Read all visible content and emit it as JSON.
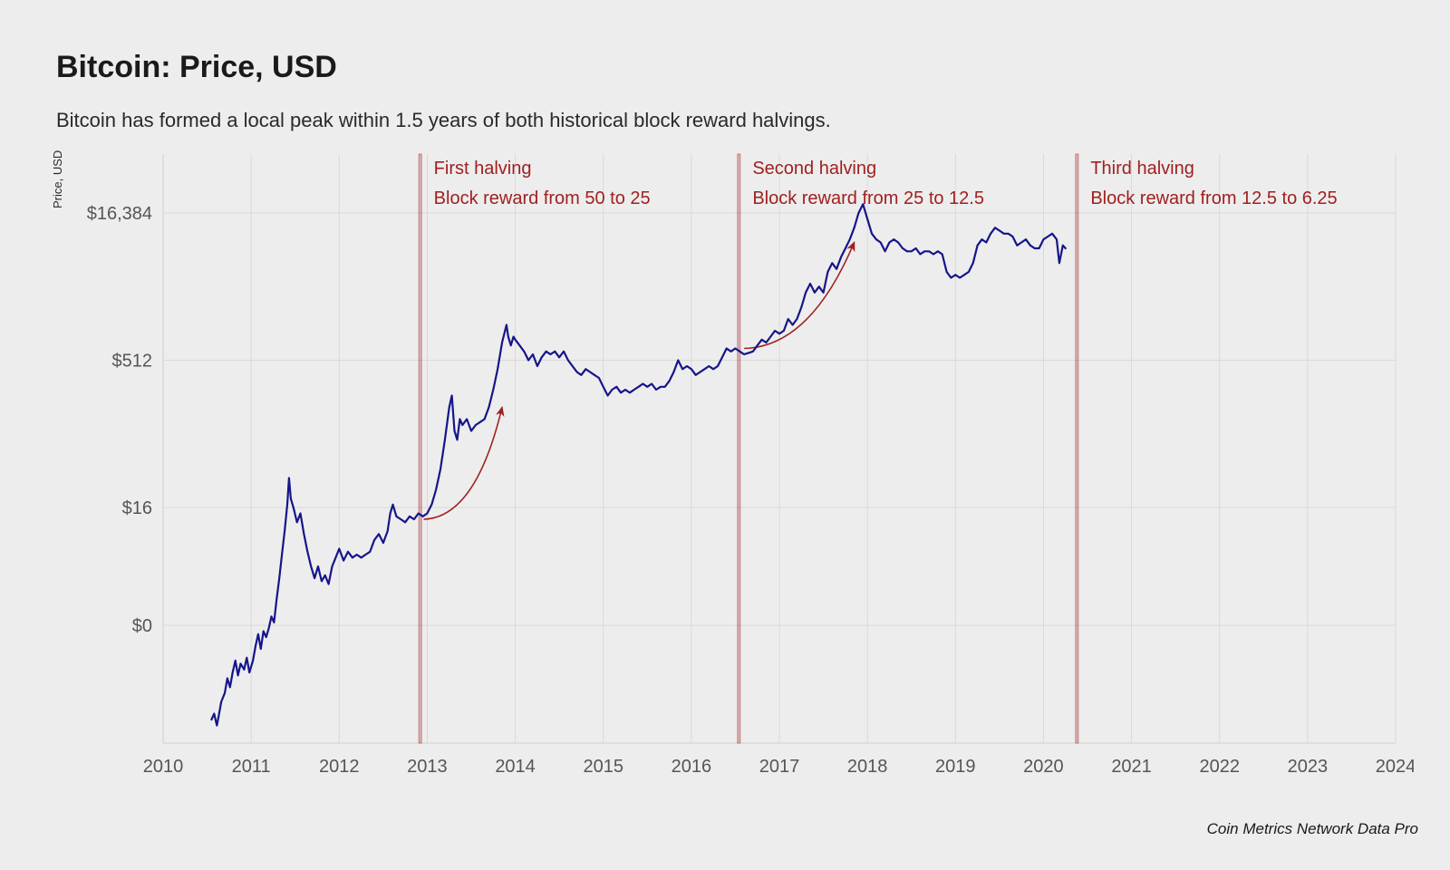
{
  "header": {
    "title": "Bitcoin: Price, USD",
    "subtitle": "Bitcoin has formed a local peak within 1.5 years of both historical block reward halvings."
  },
  "attribution": "Coin Metrics Network Data Pro",
  "chart": {
    "type": "line",
    "scale_y": "log2",
    "background_color": "#ededed",
    "grid_color": "#d9d9d9",
    "axis_line_color": "#888888",
    "axis_text_color": "#555555",
    "x_tick_fontsize": 20,
    "y_tick_fontsize": 20,
    "yaxis_title": "Price, USD",
    "yaxis_title_fontsize": 13,
    "annotation_color": "#a02020",
    "annotation_fontsize": 20,
    "line_color": "#15158a",
    "line_width": 2.2,
    "halving_line_color": "#b14a4a",
    "halving_fill_opacity": 0.35,
    "x_domain": [
      2010,
      2024
    ],
    "x_ticks": [
      2010,
      2011,
      2012,
      2013,
      2014,
      2015,
      2016,
      2017,
      2018,
      2019,
      2020,
      2021,
      2022,
      2023,
      2024
    ],
    "y_ticks_log2": [
      {
        "exp": 0,
        "label": "$0"
      },
      {
        "exp": 4,
        "label": "$16"
      },
      {
        "exp": 9,
        "label": "$512"
      },
      {
        "exp": 14,
        "label": "$16,384"
      }
    ],
    "y_domain_log2": [
      -4,
      16
    ],
    "halvings": [
      {
        "x": 2012.92,
        "lines": [
          "First halving",
          "Block reward from 50 to 25"
        ]
      },
      {
        "x": 2016.54,
        "lines": [
          "Second halving",
          "Block reward from 25 to 12.5"
        ]
      },
      {
        "x": 2020.38,
        "lines": [
          "Third halving",
          "Block reward from 12.5 to 6.25"
        ]
      }
    ],
    "arrows": [
      {
        "start": [
          2012.96,
          3.6
        ],
        "ctrl": [
          2013.55,
          3.65
        ],
        "end": [
          2013.85,
          7.4
        ]
      },
      {
        "start": [
          2016.6,
          9.4
        ],
        "ctrl": [
          2017.35,
          9.45
        ],
        "end": [
          2017.85,
          13.0
        ]
      }
    ],
    "series": [
      [
        2010.55,
        -3.2
      ],
      [
        2010.58,
        -3.0
      ],
      [
        2010.61,
        -3.4
      ],
      [
        2010.63,
        -3.1
      ],
      [
        2010.66,
        -2.6
      ],
      [
        2010.7,
        -2.3
      ],
      [
        2010.73,
        -1.8
      ],
      [
        2010.76,
        -2.1
      ],
      [
        2010.79,
        -1.6
      ],
      [
        2010.82,
        -1.2
      ],
      [
        2010.85,
        -1.7
      ],
      [
        2010.88,
        -1.3
      ],
      [
        2010.92,
        -1.5
      ],
      [
        2010.95,
        -1.1
      ],
      [
        2010.98,
        -1.6
      ],
      [
        2011.02,
        -1.2
      ],
      [
        2011.05,
        -0.7
      ],
      [
        2011.08,
        -0.3
      ],
      [
        2011.11,
        -0.8
      ],
      [
        2011.14,
        -0.2
      ],
      [
        2011.17,
        -0.4
      ],
      [
        2011.2,
        -0.1
      ],
      [
        2011.23,
        0.3
      ],
      [
        2011.26,
        0.1
      ],
      [
        2011.29,
        0.9
      ],
      [
        2011.32,
        1.6
      ],
      [
        2011.35,
        2.4
      ],
      [
        2011.38,
        3.2
      ],
      [
        2011.41,
        4.1
      ],
      [
        2011.43,
        5.0
      ],
      [
        2011.45,
        4.3
      ],
      [
        2011.48,
        4.0
      ],
      [
        2011.52,
        3.5
      ],
      [
        2011.56,
        3.8
      ],
      [
        2011.6,
        3.1
      ],
      [
        2011.64,
        2.5
      ],
      [
        2011.68,
        2.0
      ],
      [
        2011.72,
        1.6
      ],
      [
        2011.76,
        2.0
      ],
      [
        2011.8,
        1.5
      ],
      [
        2011.84,
        1.7
      ],
      [
        2011.88,
        1.4
      ],
      [
        2011.92,
        2.0
      ],
      [
        2011.96,
        2.3
      ],
      [
        2012.0,
        2.6
      ],
      [
        2012.05,
        2.2
      ],
      [
        2012.1,
        2.5
      ],
      [
        2012.15,
        2.3
      ],
      [
        2012.2,
        2.4
      ],
      [
        2012.25,
        2.3
      ],
      [
        2012.3,
        2.4
      ],
      [
        2012.35,
        2.5
      ],
      [
        2012.4,
        2.9
      ],
      [
        2012.45,
        3.1
      ],
      [
        2012.5,
        2.8
      ],
      [
        2012.55,
        3.2
      ],
      [
        2012.58,
        3.8
      ],
      [
        2012.61,
        4.1
      ],
      [
        2012.65,
        3.7
      ],
      [
        2012.7,
        3.6
      ],
      [
        2012.75,
        3.5
      ],
      [
        2012.8,
        3.7
      ],
      [
        2012.85,
        3.6
      ],
      [
        2012.9,
        3.8
      ],
      [
        2012.95,
        3.7
      ],
      [
        2013.0,
        3.8
      ],
      [
        2013.05,
        4.1
      ],
      [
        2013.1,
        4.6
      ],
      [
        2013.15,
        5.3
      ],
      [
        2013.2,
        6.3
      ],
      [
        2013.25,
        7.4
      ],
      [
        2013.28,
        7.8
      ],
      [
        2013.31,
        6.6
      ],
      [
        2013.34,
        6.3
      ],
      [
        2013.37,
        7.0
      ],
      [
        2013.4,
        6.8
      ],
      [
        2013.45,
        7.0
      ],
      [
        2013.5,
        6.6
      ],
      [
        2013.55,
        6.8
      ],
      [
        2013.6,
        6.9
      ],
      [
        2013.65,
        7.0
      ],
      [
        2013.7,
        7.4
      ],
      [
        2013.75,
        8.0
      ],
      [
        2013.8,
        8.7
      ],
      [
        2013.85,
        9.6
      ],
      [
        2013.9,
        10.2
      ],
      [
        2013.92,
        9.8
      ],
      [
        2013.95,
        9.5
      ],
      [
        2013.98,
        9.8
      ],
      [
        2014.0,
        9.7
      ],
      [
        2014.05,
        9.5
      ],
      [
        2014.1,
        9.3
      ],
      [
        2014.15,
        9.0
      ],
      [
        2014.2,
        9.2
      ],
      [
        2014.25,
        8.8
      ],
      [
        2014.3,
        9.1
      ],
      [
        2014.35,
        9.3
      ],
      [
        2014.4,
        9.2
      ],
      [
        2014.45,
        9.3
      ],
      [
        2014.5,
        9.1
      ],
      [
        2014.55,
        9.3
      ],
      [
        2014.6,
        9.0
      ],
      [
        2014.65,
        8.8
      ],
      [
        2014.7,
        8.6
      ],
      [
        2014.75,
        8.5
      ],
      [
        2014.8,
        8.7
      ],
      [
        2014.85,
        8.6
      ],
      [
        2014.9,
        8.5
      ],
      [
        2014.95,
        8.4
      ],
      [
        2015.0,
        8.1
      ],
      [
        2015.05,
        7.8
      ],
      [
        2015.1,
        8.0
      ],
      [
        2015.15,
        8.1
      ],
      [
        2015.2,
        7.9
      ],
      [
        2015.25,
        8.0
      ],
      [
        2015.3,
        7.9
      ],
      [
        2015.35,
        8.0
      ],
      [
        2015.4,
        8.1
      ],
      [
        2015.45,
        8.2
      ],
      [
        2015.5,
        8.1
      ],
      [
        2015.55,
        8.2
      ],
      [
        2015.6,
        8.0
      ],
      [
        2015.65,
        8.1
      ],
      [
        2015.7,
        8.1
      ],
      [
        2015.75,
        8.3
      ],
      [
        2015.8,
        8.6
      ],
      [
        2015.85,
        9.0
      ],
      [
        2015.9,
        8.7
      ],
      [
        2015.95,
        8.8
      ],
      [
        2016.0,
        8.7
      ],
      [
        2016.05,
        8.5
      ],
      [
        2016.1,
        8.6
      ],
      [
        2016.15,
        8.7
      ],
      [
        2016.2,
        8.8
      ],
      [
        2016.25,
        8.7
      ],
      [
        2016.3,
        8.8
      ],
      [
        2016.35,
        9.1
      ],
      [
        2016.4,
        9.4
      ],
      [
        2016.45,
        9.3
      ],
      [
        2016.5,
        9.4
      ],
      [
        2016.55,
        9.3
      ],
      [
        2016.6,
        9.2
      ],
      [
        2016.65,
        9.25
      ],
      [
        2016.7,
        9.3
      ],
      [
        2016.75,
        9.5
      ],
      [
        2016.8,
        9.7
      ],
      [
        2016.85,
        9.6
      ],
      [
        2016.9,
        9.8
      ],
      [
        2016.95,
        10.0
      ],
      [
        2017.0,
        9.9
      ],
      [
        2017.05,
        10.0
      ],
      [
        2017.1,
        10.4
      ],
      [
        2017.15,
        10.2
      ],
      [
        2017.2,
        10.4
      ],
      [
        2017.25,
        10.8
      ],
      [
        2017.3,
        11.3
      ],
      [
        2017.35,
        11.6
      ],
      [
        2017.4,
        11.3
      ],
      [
        2017.45,
        11.5
      ],
      [
        2017.5,
        11.3
      ],
      [
        2017.55,
        12.0
      ],
      [
        2017.6,
        12.3
      ],
      [
        2017.65,
        12.1
      ],
      [
        2017.7,
        12.5
      ],
      [
        2017.75,
        12.8
      ],
      [
        2017.8,
        13.1
      ],
      [
        2017.85,
        13.5
      ],
      [
        2017.9,
        14.0
      ],
      [
        2017.95,
        14.3
      ],
      [
        2017.97,
        14.1
      ],
      [
        2018.0,
        13.8
      ],
      [
        2018.05,
        13.3
      ],
      [
        2018.1,
        13.1
      ],
      [
        2018.15,
        13.0
      ],
      [
        2018.2,
        12.7
      ],
      [
        2018.25,
        13.0
      ],
      [
        2018.3,
        13.1
      ],
      [
        2018.35,
        13.0
      ],
      [
        2018.4,
        12.8
      ],
      [
        2018.45,
        12.7
      ],
      [
        2018.5,
        12.7
      ],
      [
        2018.55,
        12.8
      ],
      [
        2018.6,
        12.6
      ],
      [
        2018.65,
        12.7
      ],
      [
        2018.7,
        12.7
      ],
      [
        2018.75,
        12.6
      ],
      [
        2018.8,
        12.7
      ],
      [
        2018.85,
        12.6
      ],
      [
        2018.9,
        12.0
      ],
      [
        2018.95,
        11.8
      ],
      [
        2019.0,
        11.9
      ],
      [
        2019.05,
        11.8
      ],
      [
        2019.1,
        11.9
      ],
      [
        2019.15,
        12.0
      ],
      [
        2019.2,
        12.3
      ],
      [
        2019.25,
        12.9
      ],
      [
        2019.3,
        13.1
      ],
      [
        2019.35,
        13.0
      ],
      [
        2019.4,
        13.3
      ],
      [
        2019.45,
        13.5
      ],
      [
        2019.5,
        13.4
      ],
      [
        2019.55,
        13.3
      ],
      [
        2019.6,
        13.3
      ],
      [
        2019.65,
        13.2
      ],
      [
        2019.7,
        12.9
      ],
      [
        2019.75,
        13.0
      ],
      [
        2019.8,
        13.1
      ],
      [
        2019.85,
        12.9
      ],
      [
        2019.9,
        12.8
      ],
      [
        2019.95,
        12.8
      ],
      [
        2020.0,
        13.1
      ],
      [
        2020.05,
        13.2
      ],
      [
        2020.1,
        13.3
      ],
      [
        2020.15,
        13.1
      ],
      [
        2020.18,
        12.3
      ],
      [
        2020.22,
        12.9
      ],
      [
        2020.25,
        12.8
      ]
    ]
  }
}
